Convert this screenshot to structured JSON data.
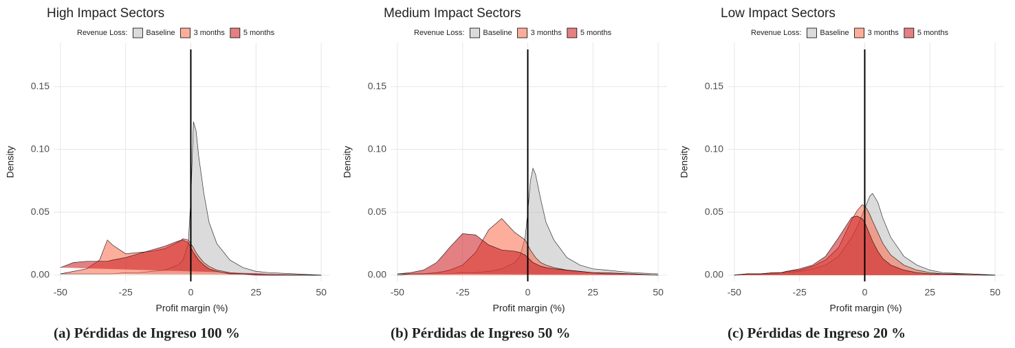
{
  "chart_data": [
    {
      "type": "area",
      "title": "High Impact Sectors",
      "caption": "(a) Pérdidas de Ingreso 100 %",
      "legend_title": "Revenue Loss:",
      "xlabel": "Profit margin (%)",
      "ylabel": "Density",
      "xlim": [
        -52.6,
        53.4
      ],
      "ylim": [
        -0.005,
        0.185
      ],
      "xticks": [
        -50,
        -25,
        0,
        25,
        50
      ],
      "yticks": [
        {
          "value": 0,
          "label": "0.00"
        },
        {
          "value": 0.05,
          "label": "0.05"
        },
        {
          "value": 0.1,
          "label": "0.10"
        },
        {
          "value": 0.15,
          "label": "0.15"
        }
      ],
      "grid": true,
      "vline": 0,
      "x": [
        -50,
        -45,
        -40,
        -35,
        -32,
        -30,
        -25,
        -20,
        -15,
        -10,
        -5,
        -3,
        -1,
        0,
        1,
        2,
        3,
        5,
        7,
        10,
        15,
        20,
        25,
        30,
        40,
        50
      ],
      "series": [
        {
          "name": "Baseline",
          "color": "#bdbdbd",
          "values": [
            0.001,
            0.001,
            0.001,
            0.001,
            0.001,
            0.001,
            0.002,
            0.002,
            0.003,
            0.004,
            0.008,
            0.012,
            0.025,
            0.06,
            0.122,
            0.115,
            0.095,
            0.065,
            0.042,
            0.025,
            0.012,
            0.006,
            0.003,
            0.002,
            0.001,
            0
          ]
        },
        {
          "name": "3 months",
          "color": "#fb6a4a",
          "values": [
            0.001,
            0.003,
            0.005,
            0.012,
            0.028,
            0.024,
            0.017,
            0.018,
            0.019,
            0.021,
            0.026,
            0.029,
            0.028,
            0.025,
            0.022,
            0.018,
            0.015,
            0.01,
            0.007,
            0.004,
            0.002,
            0.001,
            0.001,
            0,
            0,
            0
          ]
        },
        {
          "name": "5 months",
          "color": "#cb181d",
          "values": [
            0.006,
            0.01,
            0.011,
            0.011,
            0.011,
            0.012,
            0.014,
            0.017,
            0.02,
            0.023,
            0.027,
            0.028,
            0.026,
            0.022,
            0.018,
            0.015,
            0.012,
            0.008,
            0.005,
            0.003,
            0.001,
            0.001,
            0,
            0,
            0,
            0
          ]
        }
      ]
    },
    {
      "type": "area",
      "title": "Medium Impact Sectors",
      "caption": "(b) Pérdidas de Ingreso 50 %",
      "legend_title": "Revenue Loss:",
      "xlabel": "Profit margin (%)",
      "ylabel": "Density",
      "xlim": [
        -52.6,
        53.4
      ],
      "ylim": [
        -0.005,
        0.185
      ],
      "xticks": [
        -50,
        -25,
        0,
        25,
        50
      ],
      "yticks": [
        {
          "value": 0,
          "label": "0.00"
        },
        {
          "value": 0.05,
          "label": "0.05"
        },
        {
          "value": 0.1,
          "label": "0.10"
        },
        {
          "value": 0.15,
          "label": "0.15"
        }
      ],
      "grid": true,
      "vline": 0,
      "x": [
        -50,
        -45,
        -40,
        -35,
        -32,
        -30,
        -25,
        -20,
        -15,
        -10,
        -5,
        -3,
        -1,
        0,
        1,
        2,
        3,
        5,
        7,
        10,
        15,
        20,
        25,
        30,
        40,
        50
      ],
      "series": [
        {
          "name": "Baseline",
          "color": "#bdbdbd",
          "values": [
            0.001,
            0.001,
            0.001,
            0.001,
            0.001,
            0.001,
            0.002,
            0.002,
            0.003,
            0.005,
            0.01,
            0.015,
            0.03,
            0.05,
            0.075,
            0.085,
            0.08,
            0.06,
            0.042,
            0.028,
            0.014,
            0.008,
            0.005,
            0.004,
            0.002,
            0.001
          ]
        },
        {
          "name": "3 months",
          "color": "#fb6a4a",
          "values": [
            0,
            0.001,
            0.001,
            0.002,
            0.003,
            0.004,
            0.008,
            0.018,
            0.036,
            0.045,
            0.034,
            0.031,
            0.028,
            0.024,
            0.02,
            0.017,
            0.014,
            0.01,
            0.008,
            0.006,
            0.004,
            0.003,
            0.002,
            0.001,
            0.001,
            0
          ]
        },
        {
          "name": "5 months",
          "color": "#cb181d",
          "values": [
            0.001,
            0.002,
            0.004,
            0.01,
            0.017,
            0.022,
            0.033,
            0.032,
            0.024,
            0.02,
            0.019,
            0.018,
            0.016,
            0.014,
            0.012,
            0.01,
            0.009,
            0.007,
            0.006,
            0.005,
            0.004,
            0.003,
            0.002,
            0.002,
            0.001,
            0
          ]
        }
      ]
    },
    {
      "type": "area",
      "title": "Low Impact Sectors",
      "caption": "(c) Pérdidas de Ingreso 20 %",
      "legend_title": "Revenue Loss:",
      "xlabel": "Profit margin (%)",
      "ylabel": "Density",
      "xlim": [
        -52.6,
        53.4
      ],
      "ylim": [
        -0.005,
        0.185
      ],
      "xticks": [
        -50,
        -25,
        0,
        25,
        50
      ],
      "yticks": [
        {
          "value": 0,
          "label": "0.00"
        },
        {
          "value": 0.05,
          "label": "0.05"
        },
        {
          "value": 0.1,
          "label": "0.10"
        },
        {
          "value": 0.15,
          "label": "0.15"
        }
      ],
      "grid": true,
      "vline": 0,
      "x": [
        -50,
        -45,
        -40,
        -35,
        -32,
        -30,
        -25,
        -20,
        -15,
        -10,
        -5,
        -3,
        -1,
        0,
        1,
        2,
        3,
        5,
        7,
        10,
        15,
        20,
        25,
        30,
        40,
        50
      ],
      "series": [
        {
          "name": "Baseline",
          "color": "#bdbdbd",
          "values": [
            0,
            0.001,
            0.001,
            0.001,
            0.002,
            0.002,
            0.003,
            0.005,
            0.008,
            0.015,
            0.03,
            0.038,
            0.048,
            0.053,
            0.058,
            0.063,
            0.065,
            0.058,
            0.045,
            0.03,
            0.015,
            0.008,
            0.004,
            0.002,
            0.001,
            0
          ]
        },
        {
          "name": "3 months",
          "color": "#fb6a4a",
          "values": [
            0,
            0.001,
            0.001,
            0.002,
            0.002,
            0.003,
            0.004,
            0.007,
            0.012,
            0.022,
            0.044,
            0.051,
            0.056,
            0.055,
            0.052,
            0.048,
            0.043,
            0.034,
            0.025,
            0.016,
            0.008,
            0.004,
            0.002,
            0.001,
            0.001,
            0
          ]
        },
        {
          "name": "5 months",
          "color": "#cb181d",
          "values": [
            0,
            0.001,
            0.001,
            0.002,
            0.002,
            0.003,
            0.005,
            0.008,
            0.015,
            0.03,
            0.046,
            0.047,
            0.045,
            0.042,
            0.037,
            0.032,
            0.027,
            0.019,
            0.013,
            0.008,
            0.004,
            0.002,
            0.001,
            0.001,
            0,
            0
          ]
        }
      ]
    }
  ]
}
